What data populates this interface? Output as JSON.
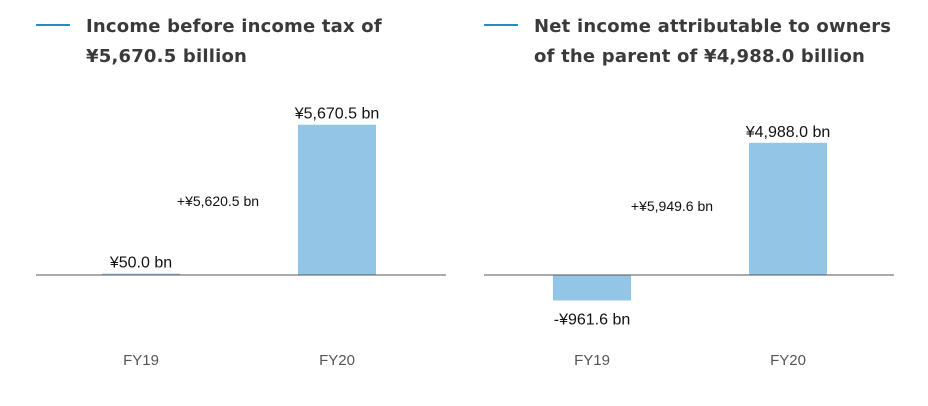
{
  "chart_data": [
    {
      "type": "bar",
      "title_lines": [
        "Income before income tax of",
        "¥5,670.5 billion"
      ],
      "categories": [
        "FY19",
        "FY20"
      ],
      "values": [
        50.0,
        5670.5
      ],
      "value_labels": [
        "¥50.0 bn",
        "¥5,670.5 bn"
      ],
      "change_label": "+¥5,620.5 bn",
      "bar_color": "#92c5e6",
      "title_marker_color": "#2a8ac9",
      "axis_color": "#555555",
      "grid": false
    },
    {
      "type": "bar",
      "title_lines": [
        "Net income attributable to owners",
        "of the parent of ¥4,988.0 billion"
      ],
      "categories": [
        "FY19",
        "FY20"
      ],
      "values": [
        -961.6,
        4988.0
      ],
      "value_labels": [
        "-¥961.6 bn",
        "¥4,988.0 bn"
      ],
      "change_label": "+¥5,949.6 bn",
      "bar_color": "#92c5e6",
      "title_marker_color": "#2a8ac9",
      "axis_color": "#555555",
      "grid": false
    }
  ]
}
